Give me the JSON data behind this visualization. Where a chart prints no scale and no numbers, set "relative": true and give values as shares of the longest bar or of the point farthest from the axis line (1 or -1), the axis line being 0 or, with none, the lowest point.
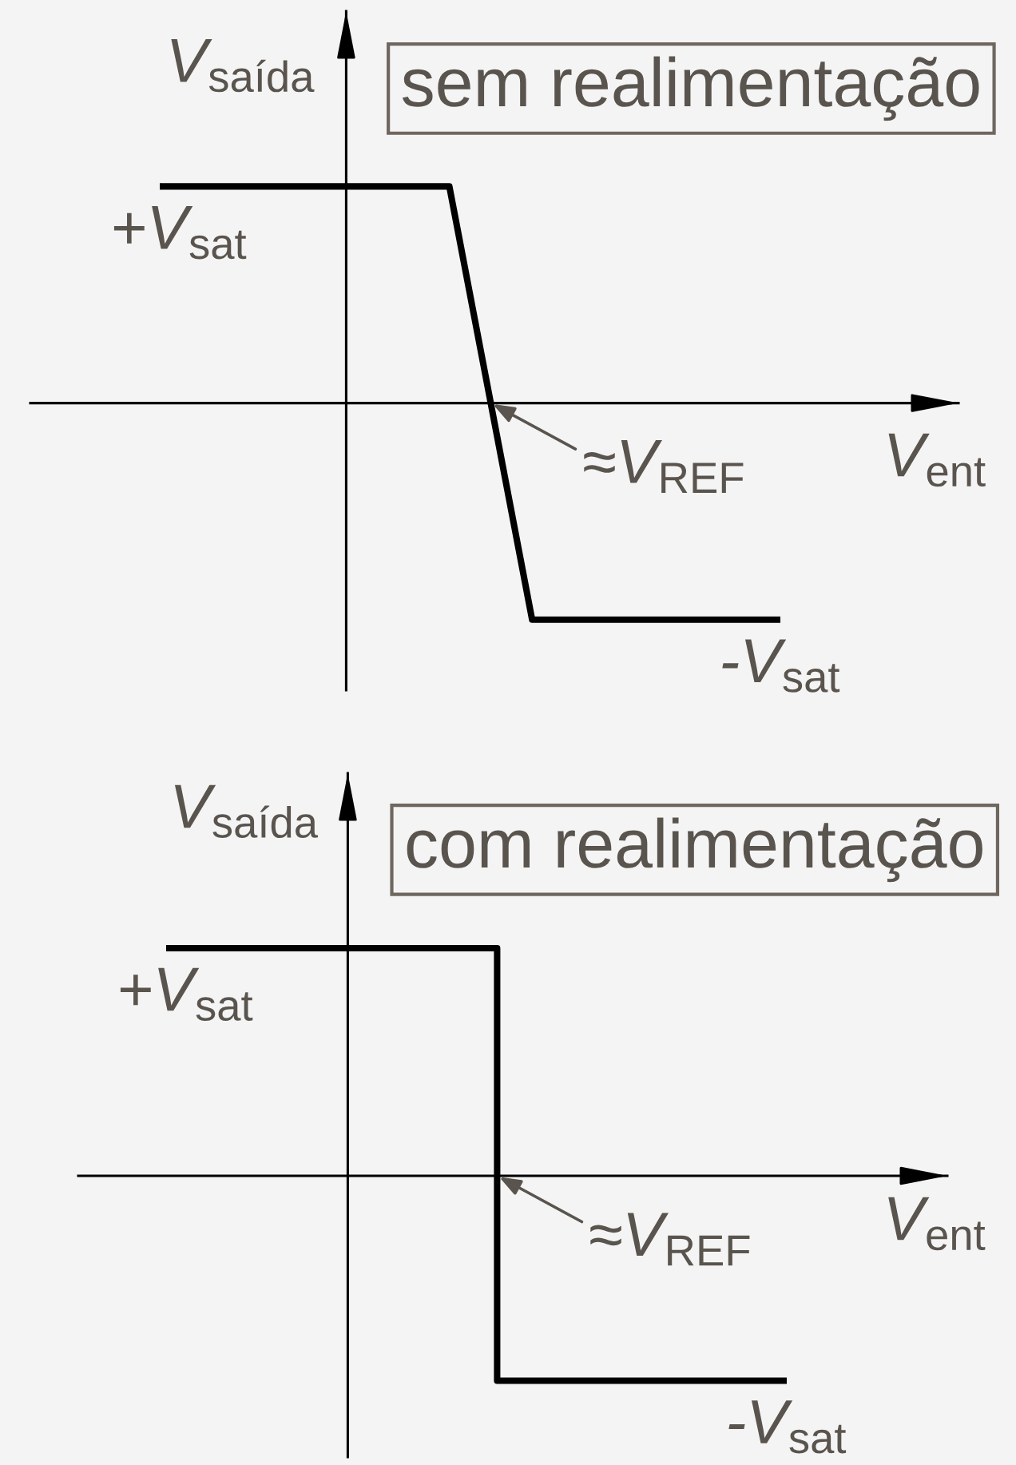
{
  "chart_data": [
    {
      "type": "line",
      "title": "sem realimentação",
      "xlabel": "V$_{ent}$",
      "ylabel": "V$_{saída}$",
      "relative": true,
      "categories": [
        null,
        null,
        null,
        null,
        null,
        null,
        null,
        null,
        null,
        null,
        null,
        null,
        null,
        null,
        null,
        null
      ],
      "series": [
        {
          "color": "#000000",
          "values": [
            1,
            1,
            1,
            1,
            1,
            1,
            1,
            1,
            0,
            -1,
            -1,
            -1,
            -1,
            -1,
            -1,
            -1
          ]
        }
      ],
      "annotations": [
        {
          "text": "+V$_{sat}$",
          "y": 1
        },
        "≈V$_{REF}$",
        {
          "text": "-V$_{sat}$",
          "y": -1
        }
      ]
    },
    {
      "type": "step",
      "title": "com realimentação",
      "xlabel": "V$_{ent}$",
      "ylabel": "V$_{saída}$",
      "relative": true,
      "categories": [
        null,
        null,
        null,
        null,
        null,
        null,
        null,
        null,
        null,
        null,
        null,
        null,
        null,
        null,
        null,
        null
      ],
      "series": [
        {
          "color": "#000000",
          "values": [
            1,
            1,
            1,
            1,
            1,
            1,
            1,
            1,
            -0.9,
            -0.9,
            -0.9,
            -0.9,
            -0.9,
            -0.9,
            -0.9,
            -0.9
          ]
        }
      ],
      "annotations": [
        {
          "text": "+V$_{sat}$",
          "y": 1
        },
        "≈V$_{REF}$",
        {
          "text": "-V$_{sat}$",
          "y": -0.9
        }
      ]
    }
  ]
}
